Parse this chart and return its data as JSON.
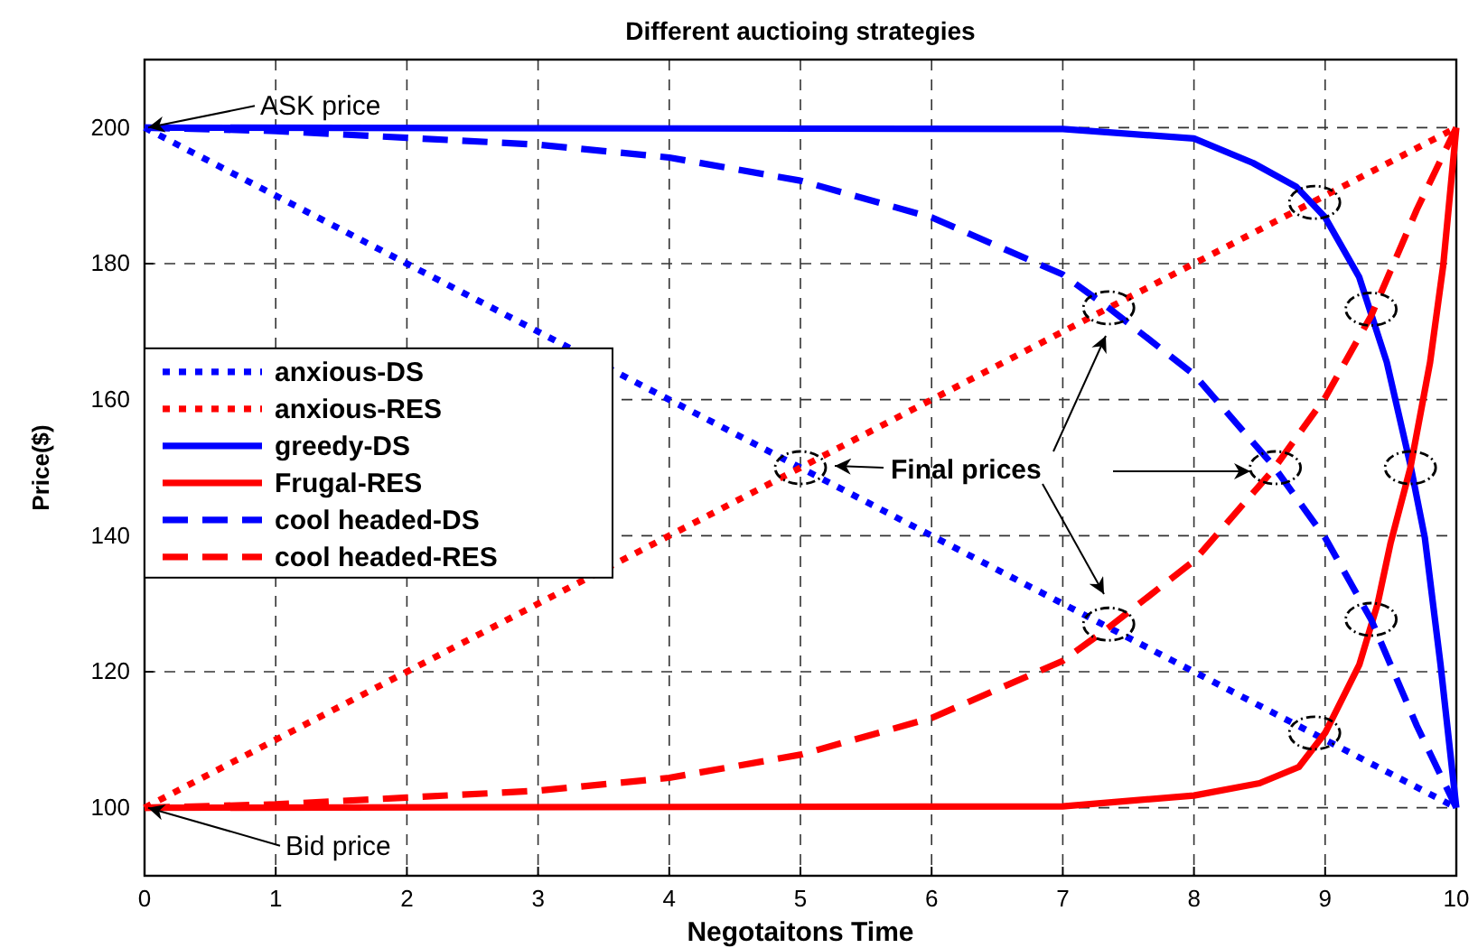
{
  "chart_data": {
    "type": "line",
    "title": "Different auctioing strategies",
    "xlabel": "Negotaitons Time",
    "ylabel": "Price($)",
    "xlim": [
      0,
      10
    ],
    "ylim": [
      90,
      210
    ],
    "xticks": [
      0,
      1,
      2,
      3,
      4,
      5,
      6,
      7,
      8,
      9,
      10
    ],
    "yticks": [
      100,
      120,
      140,
      160,
      180,
      200
    ],
    "grid": true,
    "legend": "left",
    "annotations": [
      {
        "text": "ASK price",
        "x": 0,
        "y": 200
      },
      {
        "text": "Bid price",
        "x": 0,
        "y": 100
      },
      "Final prices"
    ],
    "series": [
      {
        "name": "anxious-DS",
        "color": "#0000ff",
        "line_style": "dotted",
        "x": [
          0,
          10
        ],
        "values": [
          200,
          100
        ]
      },
      {
        "name": "anxious-RES",
        "color": "#ff0000",
        "line_style": "dotted",
        "x": [
          0,
          10
        ],
        "values": [
          100,
          200
        ]
      },
      {
        "name": "greedy-DS",
        "color": "#0000ff",
        "line_style": "solid",
        "x": [
          0,
          7,
          8,
          8.45,
          8.78,
          9,
          9.26,
          9.47,
          9.65,
          9.76,
          9.88,
          10
        ],
        "values": [
          200,
          199.8,
          198.4,
          194.8,
          191.3,
          186.8,
          178,
          165.5,
          150.4,
          139.7,
          121,
          100
        ]
      },
      {
        "name": "Frugal-RES",
        "color": "#ff0000",
        "line_style": "solid",
        "x": [
          0,
          7,
          8,
          8.5,
          8.8,
          9,
          9.26,
          9.4,
          9.5,
          9.65,
          9.8,
          9.9,
          10
        ],
        "values": [
          100,
          100.2,
          101.8,
          103.6,
          106,
          111,
          121,
          130,
          139,
          150,
          165.5,
          179.7,
          200
        ]
      },
      {
        "name": "cool headed-DS",
        "color": "#0000ff",
        "line_style": "dashed",
        "x": [
          0,
          1,
          2,
          3,
          4,
          5,
          6,
          7,
          7.35,
          8,
          8.6,
          9,
          9.35,
          9.7,
          10
        ],
        "values": [
          200,
          199.5,
          198.5,
          197.5,
          195.6,
          192.2,
          186.8,
          178.4,
          173.5,
          163.7,
          150.4,
          139.7,
          127.7,
          112,
          100
        ]
      },
      {
        "name": "cool headed-RES",
        "color": "#ff0000",
        "line_style": "dashed",
        "x": [
          0,
          1,
          2,
          3,
          4,
          5,
          6,
          7,
          7.35,
          8,
          8.6,
          9,
          9.35,
          9.7,
          10
        ],
        "values": [
          100,
          100.5,
          101.5,
          102.5,
          104.4,
          107.8,
          113.2,
          121.6,
          126.5,
          136.3,
          149.6,
          160.3,
          172.3,
          188,
          200
        ]
      }
    ]
  }
}
